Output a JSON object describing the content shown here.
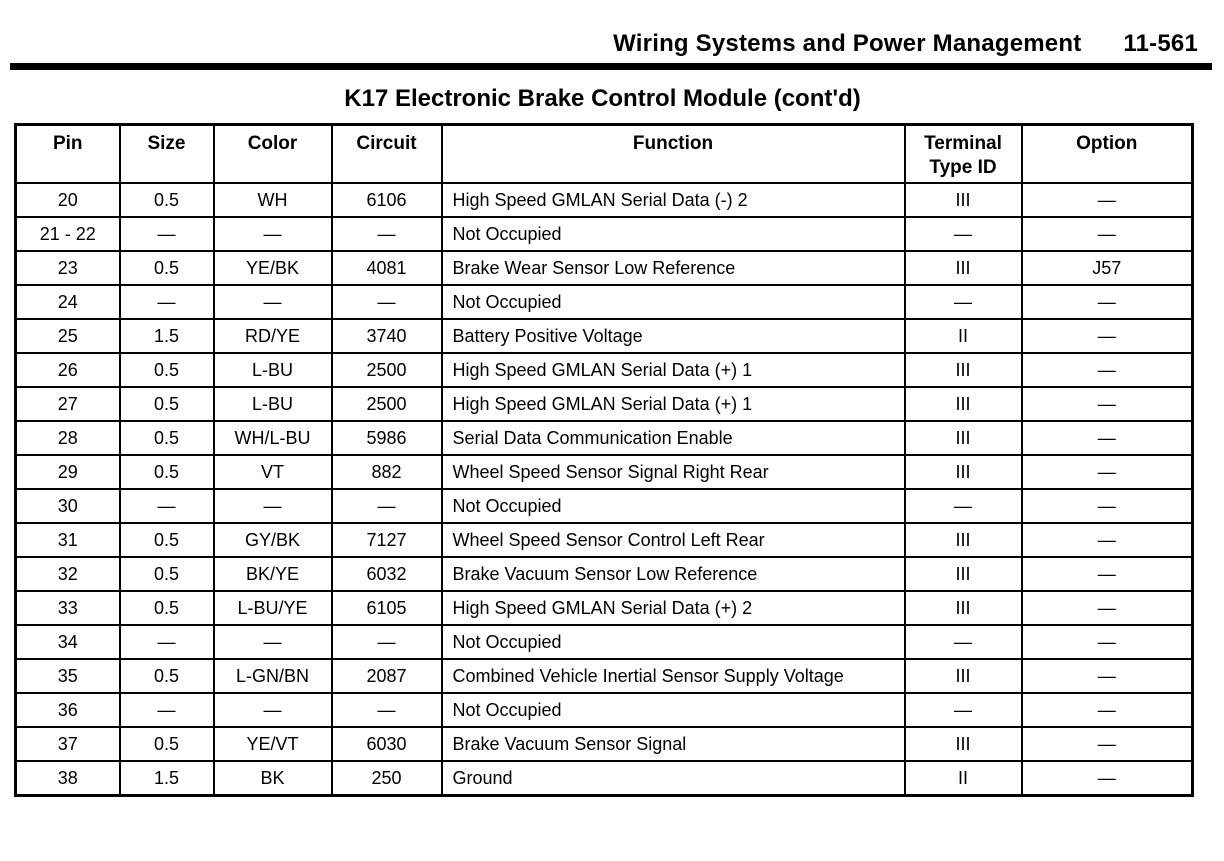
{
  "page_header": {
    "section_title": "Wiring Systems and Power Management",
    "page_number": "11-561"
  },
  "table": {
    "title": "K17 Electronic Brake Control Module (cont'd)",
    "columns": [
      "Pin",
      "Size",
      "Color",
      "Circuit",
      "Function",
      "Terminal Type ID",
      "Option"
    ],
    "rows": [
      [
        "20",
        "0.5",
        "WH",
        "6106",
        "High Speed GMLAN Serial Data (-) 2",
        "III",
        "—"
      ],
      [
        "21 - 22",
        "—",
        "—",
        "—",
        "Not Occupied",
        "—",
        "—"
      ],
      [
        "23",
        "0.5",
        "YE/BK",
        "4081",
        "Brake Wear Sensor Low Reference",
        "III",
        "J57"
      ],
      [
        "24",
        "—",
        "—",
        "—",
        "Not Occupied",
        "—",
        "—"
      ],
      [
        "25",
        "1.5",
        "RD/YE",
        "3740",
        "Battery Positive Voltage",
        "II",
        "—"
      ],
      [
        "26",
        "0.5",
        "L-BU",
        "2500",
        "High Speed GMLAN Serial Data (+) 1",
        "III",
        "—"
      ],
      [
        "27",
        "0.5",
        "L-BU",
        "2500",
        "High Speed GMLAN Serial Data (+) 1",
        "III",
        "—"
      ],
      [
        "28",
        "0.5",
        "WH/L-BU",
        "5986",
        "Serial Data Communication Enable",
        "III",
        "—"
      ],
      [
        "29",
        "0.5",
        "VT",
        "882",
        "Wheel Speed Sensor Signal Right Rear",
        "III",
        "—"
      ],
      [
        "30",
        "—",
        "—",
        "—",
        "Not Occupied",
        "—",
        "—"
      ],
      [
        "31",
        "0.5",
        "GY/BK",
        "7127",
        "Wheel Speed Sensor Control Left Rear",
        "III",
        "—"
      ],
      [
        "32",
        "0.5",
        "BK/YE",
        "6032",
        "Brake Vacuum Sensor Low Reference",
        "III",
        "—"
      ],
      [
        "33",
        "0.5",
        "L-BU/YE",
        "6105",
        "High Speed GMLAN Serial Data (+) 2",
        "III",
        "—"
      ],
      [
        "34",
        "—",
        "—",
        "—",
        "Not Occupied",
        "—",
        "—"
      ],
      [
        "35",
        "0.5",
        "L-GN/BN",
        "2087",
        "Combined Vehicle Inertial Sensor Supply Voltage",
        "III",
        "—"
      ],
      [
        "36",
        "—",
        "—",
        "—",
        "Not Occupied",
        "—",
        "—"
      ],
      [
        "37",
        "0.5",
        "YE/VT",
        "6030",
        "Brake Vacuum Sensor Signal",
        "III",
        "—"
      ],
      [
        "38",
        "1.5",
        "BK",
        "250",
        "Ground",
        "II",
        "—"
      ]
    ]
  }
}
